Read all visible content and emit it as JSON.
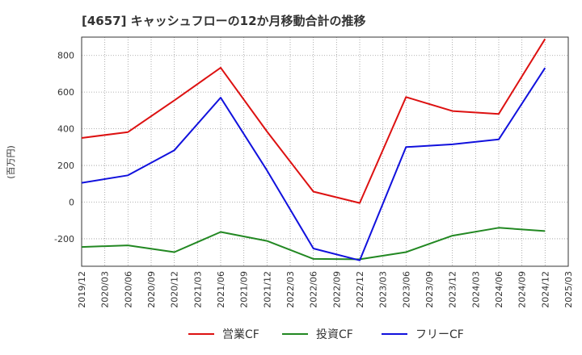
{
  "chart_data": {
    "type": "line",
    "title": "[4657]  キャッシュフローの12か月移動合計の推移",
    "ylabel": "(百万円)",
    "xlabel": "",
    "ylim": [
      -350,
      900
    ],
    "yticks": [
      -200,
      0,
      200,
      400,
      600,
      800
    ],
    "categories": [
      "2019/12",
      "2020/03",
      "2020/06",
      "2020/09",
      "2020/12",
      "2021/03",
      "2021/06",
      "2021/09",
      "2021/12",
      "2022/03",
      "2022/06",
      "2022/09",
      "2022/12",
      "2023/03",
      "2023/06",
      "2023/09",
      "2023/12",
      "2024/03",
      "2024/06",
      "2024/09",
      "2024/12",
      "2025/03"
    ],
    "grid": true,
    "legend_position": "bottom",
    "series": [
      {
        "name": "営業CF",
        "color": "#dd1111",
        "x": [
          "2019/12",
          "2020/06",
          "2020/12",
          "2021/06",
          "2021/12",
          "2022/06",
          "2022/12",
          "2023/06",
          "2023/12",
          "2024/06",
          "2024/12"
        ],
        "values": [
          350,
          382,
          555,
          733,
          385,
          57,
          -5,
          573,
          497,
          481,
          890
        ]
      },
      {
        "name": "投資CF",
        "color": "#228822",
        "x": [
          "2019/12",
          "2020/06",
          "2020/12",
          "2021/06",
          "2021/12",
          "2022/06",
          "2022/12",
          "2023/06",
          "2023/12",
          "2024/06",
          "2024/12"
        ],
        "values": [
          -245,
          -236,
          -273,
          -163,
          -212,
          -310,
          -312,
          -273,
          -183,
          -140,
          -158
        ]
      },
      {
        "name": "フリーCF",
        "color": "#1111dd",
        "x": [
          "2019/12",
          "2020/06",
          "2020/12",
          "2021/06",
          "2021/12",
          "2022/06",
          "2022/12",
          "2023/06",
          "2023/12",
          "2024/06",
          "2024/12"
        ],
        "values": [
          105,
          146,
          283,
          570,
          173,
          -253,
          -318,
          300,
          315,
          342,
          732
        ]
      }
    ]
  }
}
